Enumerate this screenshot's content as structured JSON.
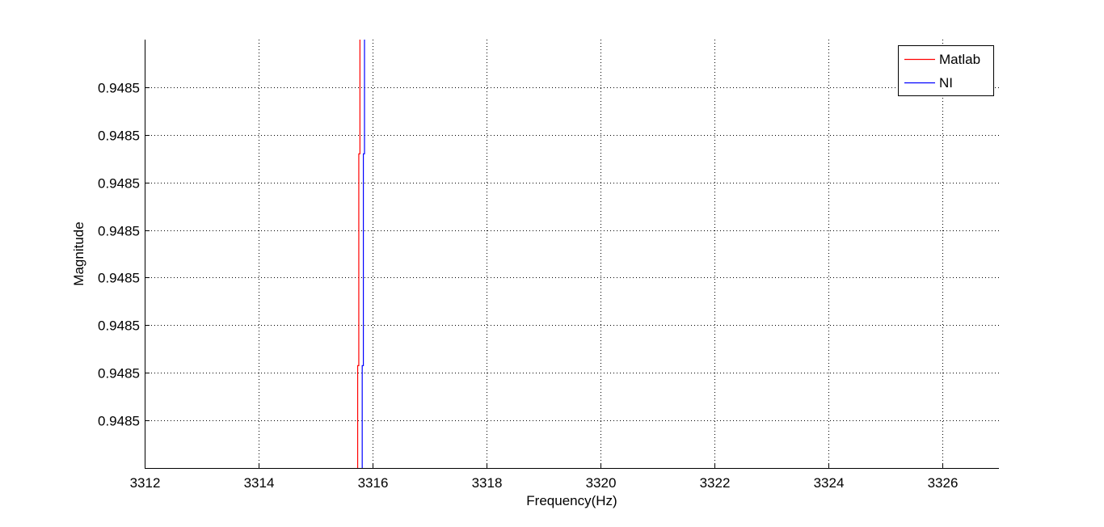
{
  "chart_data": {
    "type": "line",
    "title": "",
    "xlabel": "Frequency(Hz)",
    "ylabel": "Magnitude",
    "xlim": [
      3312,
      3327
    ],
    "ylim": [
      0,
      9
    ],
    "x_ticks": [
      3312,
      3314,
      3316,
      3318,
      3320,
      3322,
      3324,
      3326
    ],
    "x_tick_labels": [
      "3312",
      "3314",
      "3316",
      "3318",
      "3320",
      "3322",
      "3324",
      "3326"
    ],
    "y_ticks": [
      1,
      2,
      3,
      4,
      5,
      6,
      7,
      8
    ],
    "y_tick_labels": [
      "0.9485",
      "0.9485",
      "0.9485",
      "0.9485",
      "0.9485",
      "0.9485",
      "0.9485",
      "0.9485"
    ],
    "grid": true,
    "legend_position": "top-right",
    "series": [
      {
        "name": "Matlab",
        "color": "#ff0000",
        "x": [
          3315.74,
          3315.74,
          3315.76,
          3315.76,
          3315.78,
          3315.78
        ],
        "y": [
          0,
          2.15,
          2.15,
          6.6,
          6.6,
          9
        ]
      },
      {
        "name": "NI",
        "color": "#0000ff",
        "x": [
          3315.82,
          3315.82,
          3315.84,
          3315.84,
          3315.86,
          3315.86
        ],
        "y": [
          0,
          2.15,
          2.15,
          6.6,
          6.6,
          9
        ]
      }
    ]
  }
}
